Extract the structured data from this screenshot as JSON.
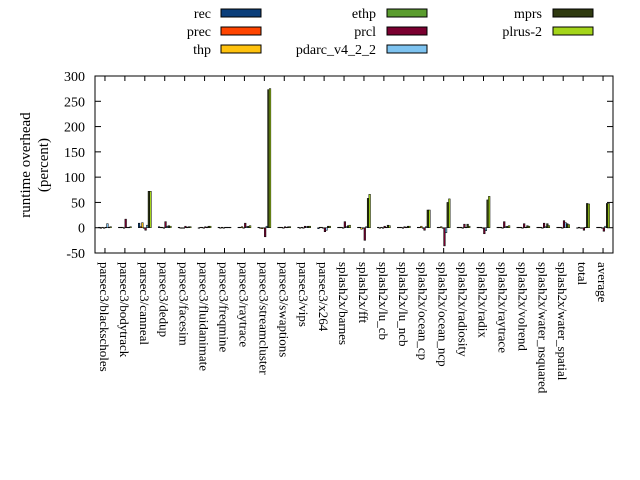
{
  "chart_data": {
    "type": "bar",
    "ylabel_lines": [
      "runtime overhead",
      "(percent)"
    ],
    "ylim": [
      -50,
      300
    ],
    "yticks": [
      -50,
      0,
      50,
      100,
      150,
      200,
      250,
      300
    ],
    "grid": false,
    "legend_placement": "top",
    "categories": [
      "parsec3/blackscholes",
      "parsec3/bodytrack",
      "parsec3/canneal",
      "parsec3/dedup",
      "parsec3/facesim",
      "parsec3/fluidanimate",
      "parsec3/freqmine",
      "parsec3/raytrace",
      "parsec3/streamcluster",
      "parsec3/swaptions",
      "parsec3/vips",
      "parsec3/x264",
      "splash2x/barnes",
      "splash2x/fft",
      "splash2x/lu_cb",
      "splash2x/lu_ncb",
      "splash2x/ocean_cp",
      "splash2x/ocean_ncp",
      "splash2x/radiosity",
      "splash2x/radix",
      "splash2x/raytrace",
      "splash2x/volrend",
      "splash2x/water_nsquared",
      "splash2x/water_spatial",
      "total",
      "average"
    ],
    "series": [
      {
        "name": "rec",
        "color": "#0a3e7a",
        "values": [
          1,
          1,
          9,
          2,
          1,
          0,
          1,
          1,
          1,
          1,
          1,
          -2,
          1,
          1,
          1,
          1,
          1,
          1,
          1,
          1,
          1,
          1,
          1,
          1,
          0,
          1
        ]
      },
      {
        "name": "prec",
        "color": "#ff4500",
        "values": [
          0,
          1,
          2,
          1,
          0,
          1,
          0,
          1,
          0,
          1,
          0,
          1,
          1,
          1,
          0,
          1,
          1,
          1,
          1,
          1,
          1,
          1,
          1,
          1,
          1,
          1
        ]
      },
      {
        "name": "thp",
        "color": "#ffc20e",
        "values": [
          1,
          1,
          10,
          1,
          0,
          1,
          1,
          2,
          -2,
          1,
          1,
          1,
          1,
          -3,
          1,
          1,
          3,
          2,
          1,
          1,
          1,
          1,
          1,
          1,
          0,
          1
        ]
      },
      {
        "name": "ethp",
        "color": "#5a9c2e",
        "values": [
          0,
          0,
          0,
          0,
          0,
          0,
          0,
          0,
          0,
          0,
          0,
          0,
          0,
          0,
          0,
          0,
          0,
          0,
          0,
          0,
          0,
          0,
          0,
          0,
          0,
          0
        ]
      },
      {
        "name": "prcl",
        "color": "#7a0030",
        "values": [
          1,
          17,
          -5,
          12,
          3,
          2,
          1,
          9,
          -18,
          2,
          3,
          -8,
          12,
          -25,
          3,
          2,
          -5,
          -36,
          7,
          -12,
          12,
          8,
          9,
          14,
          -5,
          -7
        ]
      },
      {
        "name": "pdarc_v4_2_2",
        "color": "#7ec3f0",
        "values": [
          8,
          1,
          5,
          3,
          1,
          1,
          1,
          2,
          3,
          1,
          2,
          -5,
          2,
          2,
          1,
          1,
          2,
          -10,
          1,
          -6,
          2,
          1,
          2,
          10,
          1,
          3
        ]
      },
      {
        "name": "mprs",
        "color": "#2f3a10",
        "values": [
          1,
          1,
          72,
          4,
          2,
          3,
          1,
          3,
          273,
          2,
          3,
          3,
          4,
          58,
          5,
          3,
          35,
          50,
          7,
          55,
          3,
          4,
          8,
          8,
          48,
          48
        ]
      },
      {
        "name": "plrus-2",
        "color": "#a4d51a",
        "values": [
          2,
          2,
          72,
          3,
          2,
          3,
          1,
          4,
          275,
          2,
          3,
          3,
          5,
          66,
          4,
          3,
          35,
          57,
          3,
          62,
          4,
          3,
          4,
          6,
          47,
          48
        ]
      }
    ]
  }
}
